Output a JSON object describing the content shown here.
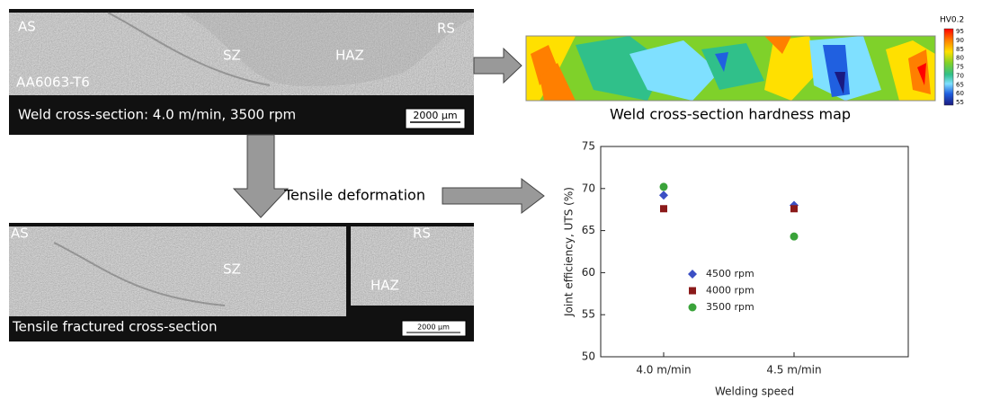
{
  "weld_section": {
    "labels": [
      "AS",
      "RS",
      "SZ",
      "HAZ",
      "AA6063-T6"
    ],
    "caption": "Weld cross-section: 4.0 m/min, 3500 rpm",
    "scale_bar": "2000 µm"
  },
  "hardness_map": {
    "title": "Weld cross-section hardness map",
    "legend_title": "HV0.2",
    "legend_ticks": [
      95,
      90,
      85,
      80,
      75,
      70,
      65,
      60,
      55
    ]
  },
  "arrow_label": "Tensile deformation",
  "fractured_section": {
    "labels": [
      "AS",
      "RS",
      "SZ",
      "HAZ"
    ],
    "caption": "Tensile fractured cross-section",
    "scale_bar": "2000 µm"
  },
  "chart_data": {
    "type": "scatter",
    "x_label": "Welding speed",
    "y_label": "Joint efficiency, UTS (%)",
    "categories": [
      "4.0 m/min",
      "4.5 m/min"
    ],
    "series": [
      {
        "name": "4500 rpm",
        "color": "#3b4fc4",
        "marker": "diamond",
        "values": [
          69.2,
          68.0
        ]
      },
      {
        "name": "4000 rpm",
        "color": "#8b1a1a",
        "marker": "square",
        "values": [
          67.6,
          67.6
        ]
      },
      {
        "name": "3500 rpm",
        "color": "#3aa33a",
        "marker": "circle",
        "values": [
          70.2,
          64.3
        ]
      }
    ],
    "ylim": [
      50,
      75
    ],
    "yticks": [
      50,
      55,
      60,
      65,
      70,
      75
    ]
  }
}
